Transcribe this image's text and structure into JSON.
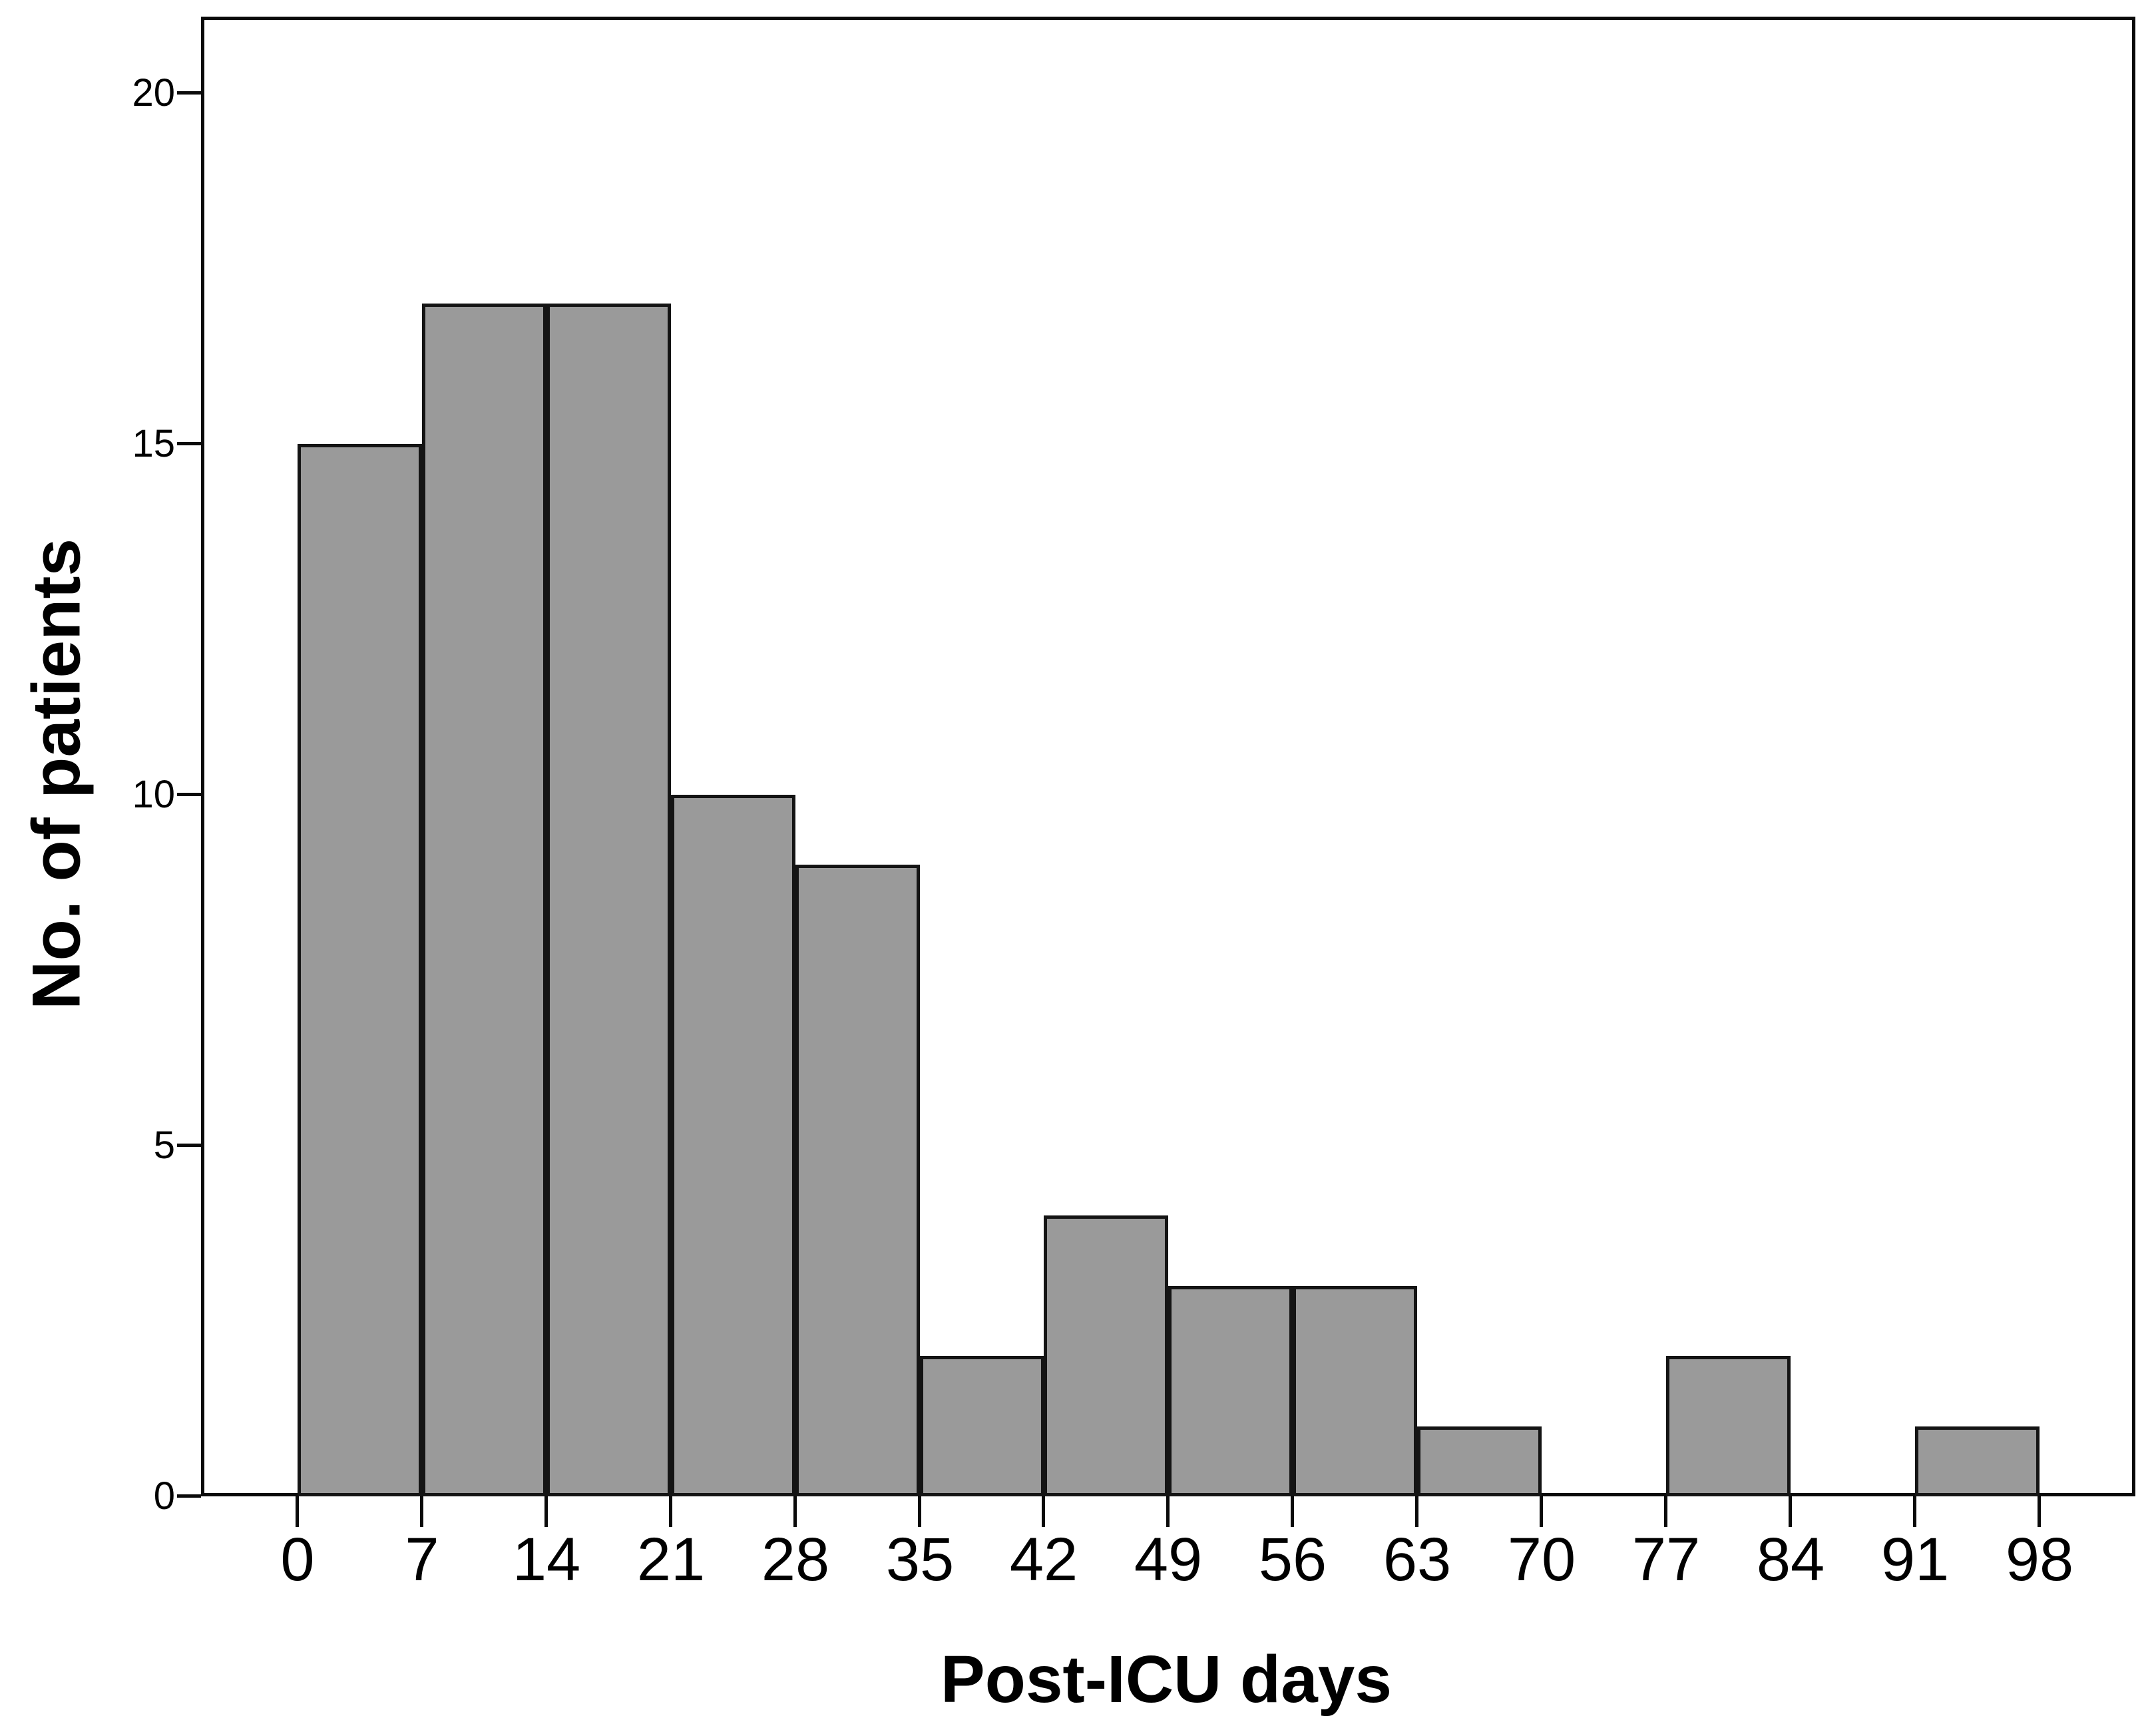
{
  "figure": {
    "background_color": "#ffffff",
    "text_color": "#000000"
  },
  "chart_data": {
    "type": "bar",
    "subtype": "histogram",
    "title": "",
    "xlabel": "Post-ICU days",
    "ylabel": "No. of patients",
    "bin_width_days": 7,
    "bin_edges": [
      0,
      7,
      14,
      21,
      28,
      35,
      42,
      49,
      56,
      63,
      70,
      77,
      84,
      91,
      98
    ],
    "values": [
      15,
      17,
      17,
      10,
      9,
      2,
      4,
      3,
      3,
      1,
      0,
      2,
      0,
      1
    ],
    "x_tick_labels": [
      "0",
      "7",
      "14",
      "21",
      "28",
      "35",
      "42",
      "49",
      "56",
      "63",
      "70",
      "77",
      "84",
      "91",
      "98"
    ],
    "y_ticks": [
      0,
      5,
      10,
      15,
      20
    ],
    "y_tick_labels": [
      "0",
      "5",
      "10",
      "15",
      "20"
    ],
    "ylim": [
      0,
      21.1
    ],
    "xlim_days": [
      -5.4,
      103.4
    ],
    "grid": false,
    "legend": null,
    "colors": {
      "bar_fill": "#9a9a9a",
      "bar_border": "#141414",
      "axis": "#0a0a0a"
    }
  }
}
